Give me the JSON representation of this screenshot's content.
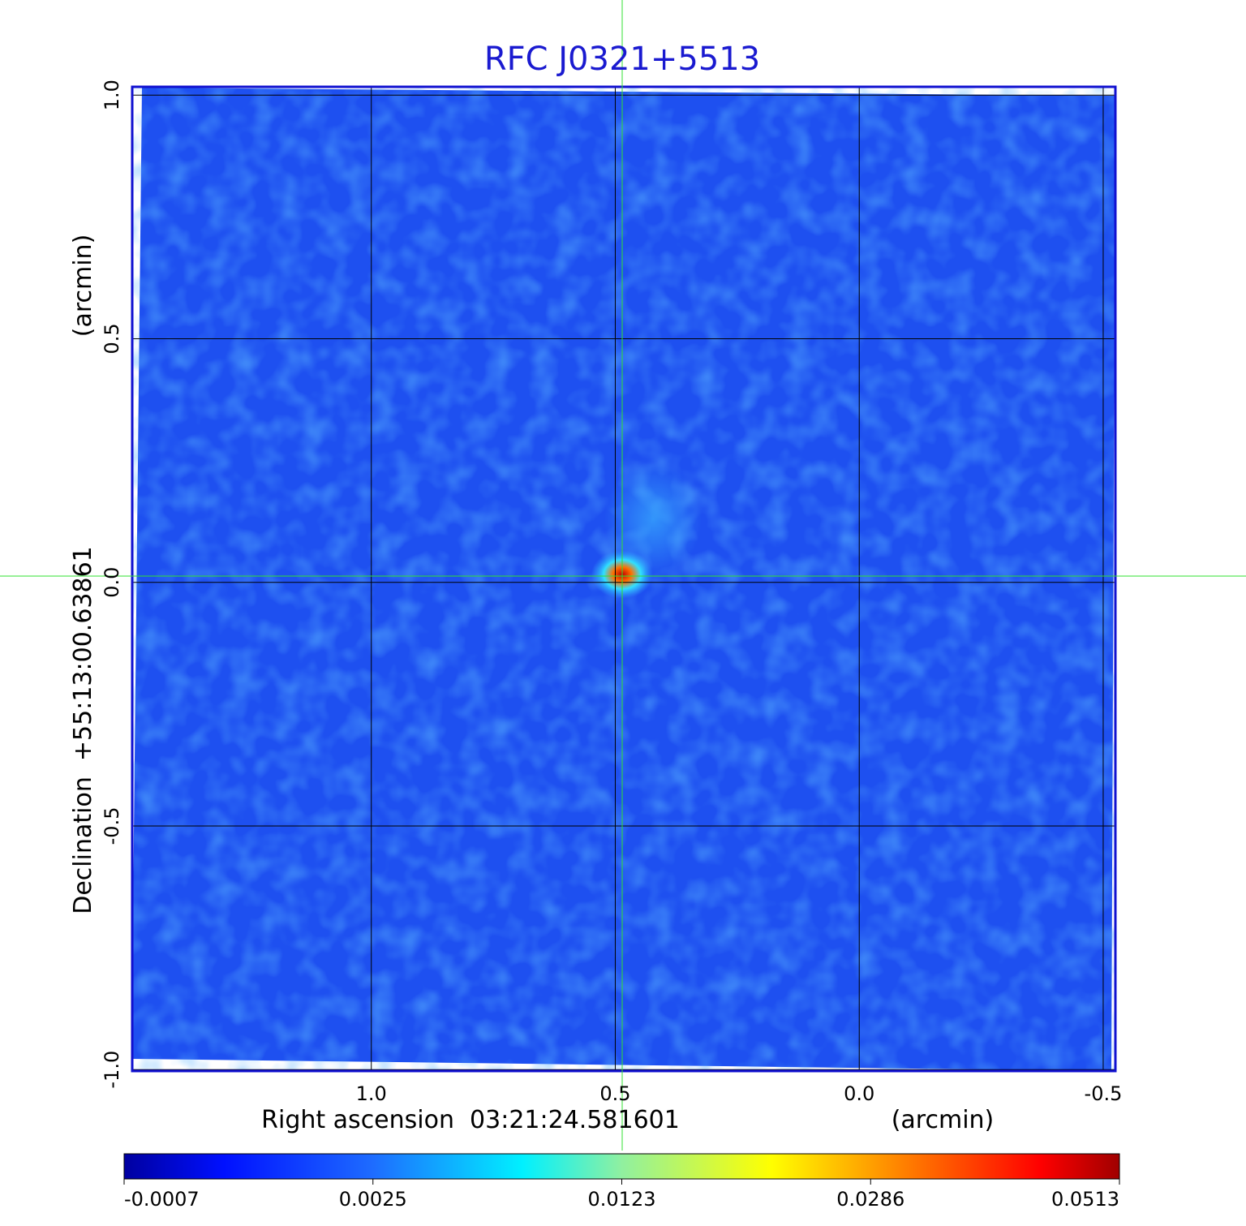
{
  "chart_data": {
    "type": "image",
    "title": "RFC J0321+5513",
    "x_label": "Right ascension  03:21:24.581601",
    "x_unit": "(arcmin)",
    "y_label": "Declination  +55:13:00.63861",
    "y_unit": "(arcmin)",
    "xlim": [
      1.49,
      -0.525
    ],
    "ylim": [
      -1.003,
      1.017
    ],
    "xticks": [
      {
        "value": 1,
        "label": "1.0"
      },
      0.5,
      {
        "value": 0,
        "label": "0.0"
      },
      -0.5
    ],
    "yticks": [
      {
        "value": -1,
        "label": "-1.0"
      },
      -0.5,
      {
        "value": 0,
        "label": "0.0"
      },
      0.5,
      {
        "value": 1,
        "label": "1.0"
      }
    ],
    "grid": true,
    "colorbar_ticks": [
      -0.0007,
      0.0025,
      0.0123,
      0.0286,
      0.0513
    ]
  }
}
